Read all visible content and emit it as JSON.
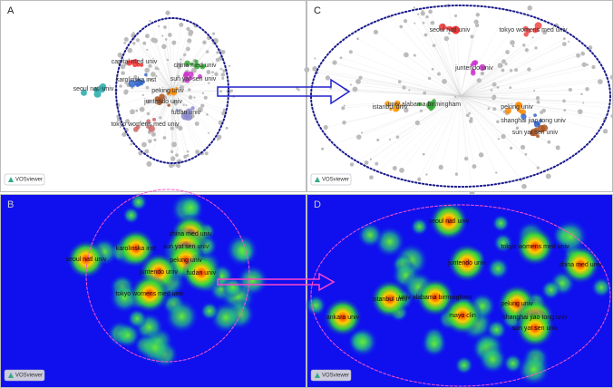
{
  "panels": [
    {
      "label": "A",
      "badge": "VOSviewer",
      "nodes": [
        "capital med univ",
        "china med univ",
        "sun yat sen univ",
        "karolinska inst",
        "peking univ",
        "seoul natl univ",
        "juntendo univ",
        "fudan univ",
        "tokyo womens med univ"
      ]
    },
    {
      "label": "C",
      "badge": "VOSviewer",
      "nodes": [
        "seoul natl univ",
        "tokyo womens med univ",
        "juntendo univ",
        "univ alabama birmingham",
        "peking univ",
        "shanghai jiao tong univ",
        "sun yat sen univ",
        "istanbul univ"
      ]
    },
    {
      "label": "B",
      "badge": "VOSviewer",
      "nodes": [
        "china med univ",
        "sun yat sen univ",
        "peking univ",
        "karolinska inst",
        "seoul natl univ",
        "juntendo univ",
        "fudan univ",
        "tokyo womens med univ"
      ]
    },
    {
      "label": "D",
      "badge": "VOSviewer",
      "nodes": [
        "seoul natl univ",
        "tokyo womens med univ",
        "juntendo univ",
        "univ alabama birmingham",
        "peking univ",
        "shanghai jiao tong univ",
        "sun yat sen univ",
        "istanbul univ",
        "ankara univ",
        "china med univ",
        "mayo clin"
      ]
    }
  ]
}
